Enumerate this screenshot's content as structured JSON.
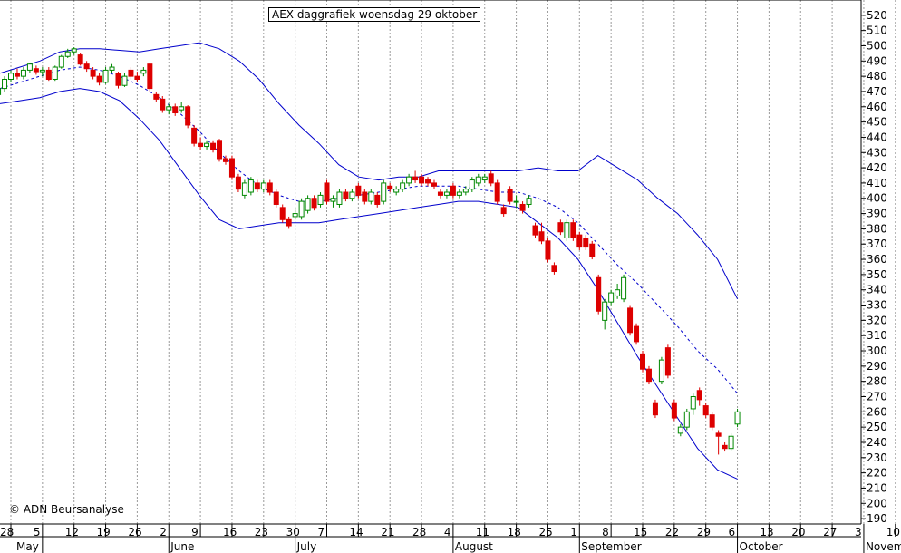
{
  "chart_data": {
    "type": "candlestick",
    "title": "AEX daggrafiek woensdag 29 oktober",
    "copyright": "© ADN Beursanalyse",
    "ylim": [
      190,
      520
    ],
    "y_ticks": [
      190,
      200,
      210,
      220,
      230,
      240,
      250,
      260,
      270,
      280,
      290,
      300,
      310,
      320,
      330,
      340,
      350,
      360,
      370,
      380,
      390,
      400,
      410,
      420,
      430,
      440,
      450,
      460,
      470,
      480,
      490,
      500,
      510,
      520
    ],
    "grid": "vertical dotted, weekly",
    "x_day_labels": [
      "28",
      "5",
      "12",
      "19",
      "26",
      "2",
      "9",
      "16",
      "23",
      "30",
      "7",
      "14",
      "21",
      "28",
      "4",
      "11",
      "18",
      "25",
      "1",
      "8",
      "15",
      "22",
      "29",
      "6",
      "13",
      "20",
      "27",
      "3",
      "10"
    ],
    "x_month_labels": [
      {
        "label": "May",
        "week_index": 1
      },
      {
        "label": "June",
        "week_index": 5
      },
      {
        "label": "July",
        "week_index": 9
      },
      {
        "label": "August",
        "week_index": 14
      },
      {
        "label": "September",
        "week_index": 18
      },
      {
        "label": "October",
        "week_index": 23
      },
      {
        "label": "Novemb",
        "week_index": 27
      }
    ],
    "candles_per_week": 5,
    "candles": [
      {
        "o": 468,
        "c": 472,
        "h": 474,
        "l": 466
      },
      {
        "o": 472,
        "c": 478,
        "h": 480,
        "l": 470
      },
      {
        "o": 478,
        "c": 482,
        "h": 484,
        "l": 476
      },
      {
        "o": 482,
        "c": 480,
        "h": 485,
        "l": 478
      },
      {
        "o": 480,
        "c": 484,
        "h": 486,
        "l": 478
      },
      {
        "o": 484,
        "c": 488,
        "h": 489,
        "l": 482
      },
      {
        "o": 485,
        "c": 483,
        "h": 487,
        "l": 481
      },
      {
        "o": 483,
        "c": 484,
        "h": 486,
        "l": 480
      },
      {
        "o": 484,
        "c": 478,
        "h": 486,
        "l": 477
      },
      {
        "o": 478,
        "c": 486,
        "h": 487,
        "l": 477
      },
      {
        "o": 486,
        "c": 493,
        "h": 494,
        "l": 485
      },
      {
        "o": 493,
        "c": 496,
        "h": 498,
        "l": 492
      },
      {
        "o": 496,
        "c": 498,
        "h": 499,
        "l": 494
      },
      {
        "o": 494,
        "c": 488,
        "h": 495,
        "l": 487
      },
      {
        "o": 488,
        "c": 485,
        "h": 490,
        "l": 483
      },
      {
        "o": 484,
        "c": 480,
        "h": 486,
        "l": 478
      },
      {
        "o": 480,
        "c": 476,
        "h": 482,
        "l": 474
      },
      {
        "o": 476,
        "c": 484,
        "h": 486,
        "l": 475
      },
      {
        "o": 484,
        "c": 486,
        "h": 488,
        "l": 482
      },
      {
        "o": 482,
        "c": 474,
        "h": 483,
        "l": 472
      },
      {
        "o": 474,
        "c": 480,
        "h": 482,
        "l": 473
      },
      {
        "o": 484,
        "c": 480,
        "h": 486,
        "l": 478
      },
      {
        "o": 480,
        "c": 478,
        "h": 483,
        "l": 476
      },
      {
        "o": 482,
        "c": 484,
        "h": 486,
        "l": 480
      },
      {
        "o": 488,
        "c": 472,
        "h": 489,
        "l": 470
      },
      {
        "o": 468,
        "c": 465,
        "h": 470,
        "l": 463
      },
      {
        "o": 465,
        "c": 458,
        "h": 467,
        "l": 456
      },
      {
        "o": 458,
        "c": 460,
        "h": 462,
        "l": 455
      },
      {
        "o": 460,
        "c": 456,
        "h": 462,
        "l": 454
      },
      {
        "o": 458,
        "c": 460,
        "h": 463,
        "l": 456
      },
      {
        "o": 460,
        "c": 448,
        "h": 461,
        "l": 446
      },
      {
        "o": 446,
        "c": 436,
        "h": 448,
        "l": 434
      },
      {
        "o": 436,
        "c": 434,
        "h": 440,
        "l": 432
      },
      {
        "o": 434,
        "c": 436,
        "h": 438,
        "l": 432
      },
      {
        "o": 436,
        "c": 432,
        "h": 438,
        "l": 430
      },
      {
        "o": 438,
        "c": 426,
        "h": 439,
        "l": 424
      },
      {
        "o": 426,
        "c": 424,
        "h": 428,
        "l": 422
      },
      {
        "o": 426,
        "c": 414,
        "h": 428,
        "l": 412
      },
      {
        "o": 414,
        "c": 406,
        "h": 416,
        "l": 404
      },
      {
        "o": 402,
        "c": 410,
        "h": 412,
        "l": 400
      },
      {
        "o": 404,
        "c": 412,
        "h": 414,
        "l": 402
      },
      {
        "o": 410,
        "c": 406,
        "h": 412,
        "l": 404
      },
      {
        "o": 406,
        "c": 410,
        "h": 412,
        "l": 404
      },
      {
        "o": 410,
        "c": 404,
        "h": 412,
        "l": 402
      },
      {
        "o": 404,
        "c": 396,
        "h": 406,
        "l": 394
      },
      {
        "o": 394,
        "c": 386,
        "h": 396,
        "l": 384
      },
      {
        "o": 386,
        "c": 382,
        "h": 388,
        "l": 380
      },
      {
        "o": 388,
        "c": 390,
        "h": 394,
        "l": 386
      },
      {
        "o": 388,
        "c": 398,
        "h": 400,
        "l": 386
      },
      {
        "o": 392,
        "c": 400,
        "h": 402,
        "l": 390
      },
      {
        "o": 400,
        "c": 394,
        "h": 402,
        "l": 392
      },
      {
        "o": 396,
        "c": 402,
        "h": 404,
        "l": 394
      },
      {
        "o": 410,
        "c": 398,
        "h": 412,
        "l": 396
      },
      {
        "o": 398,
        "c": 400,
        "h": 402,
        "l": 394
      },
      {
        "o": 396,
        "c": 404,
        "h": 406,
        "l": 394
      },
      {
        "o": 404,
        "c": 400,
        "h": 406,
        "l": 398
      },
      {
        "o": 400,
        "c": 404,
        "h": 406,
        "l": 398
      },
      {
        "o": 408,
        "c": 402,
        "h": 410,
        "l": 400
      },
      {
        "o": 404,
        "c": 398,
        "h": 406,
        "l": 396
      },
      {
        "o": 398,
        "c": 404,
        "h": 406,
        "l": 396
      },
      {
        "o": 402,
        "c": 396,
        "h": 404,
        "l": 394
      },
      {
        "o": 398,
        "c": 410,
        "h": 412,
        "l": 396
      },
      {
        "o": 408,
        "c": 406,
        "h": 410,
        "l": 404
      },
      {
        "o": 404,
        "c": 406,
        "h": 408,
        "l": 402
      },
      {
        "o": 406,
        "c": 410,
        "h": 412,
        "l": 404
      },
      {
        "o": 410,
        "c": 414,
        "h": 416,
        "l": 408
      },
      {
        "o": 414,
        "c": 412,
        "h": 418,
        "l": 410
      },
      {
        "o": 414,
        "c": 410,
        "h": 416,
        "l": 408
      },
      {
        "o": 412,
        "c": 410,
        "h": 414,
        "l": 408
      },
      {
        "o": 410,
        "c": 408,
        "h": 412,
        "l": 406
      },
      {
        "o": 404,
        "c": 402,
        "h": 406,
        "l": 400
      },
      {
        "o": 402,
        "c": 404,
        "h": 406,
        "l": 400
      },
      {
        "o": 408,
        "c": 402,
        "h": 410,
        "l": 400
      },
      {
        "o": 402,
        "c": 404,
        "h": 406,
        "l": 400
      },
      {
        "o": 404,
        "c": 406,
        "h": 408,
        "l": 402
      },
      {
        "o": 406,
        "c": 412,
        "h": 414,
        "l": 404
      },
      {
        "o": 410,
        "c": 414,
        "h": 416,
        "l": 408
      },
      {
        "o": 412,
        "c": 414,
        "h": 416,
        "l": 410
      },
      {
        "o": 416,
        "c": 410,
        "h": 418,
        "l": 408
      },
      {
        "o": 410,
        "c": 398,
        "h": 412,
        "l": 396
      },
      {
        "o": 394,
        "c": 390,
        "h": 396,
        "l": 388
      },
      {
        "o": 406,
        "c": 398,
        "h": 408,
        "l": 396
      },
      {
        "o": 398,
        "c": 398,
        "h": 402,
        "l": 394
      },
      {
        "o": 396,
        "c": 392,
        "h": 398,
        "l": 390
      },
      {
        "o": 396,
        "c": 400,
        "h": 402,
        "l": 394
      },
      {
        "o": 382,
        "c": 376,
        "h": 384,
        "l": 374
      },
      {
        "o": 378,
        "c": 372,
        "h": 384,
        "l": 370
      },
      {
        "o": 372,
        "c": 360,
        "h": 374,
        "l": 358
      },
      {
        "o": 356,
        "c": 352,
        "h": 358,
        "l": 350
      },
      {
        "o": 384,
        "c": 378,
        "h": 386,
        "l": 376
      },
      {
        "o": 374,
        "c": 384,
        "h": 386,
        "l": 372
      },
      {
        "o": 384,
        "c": 374,
        "h": 386,
        "l": 372
      },
      {
        "o": 376,
        "c": 368,
        "h": 378,
        "l": 366
      },
      {
        "o": 374,
        "c": 368,
        "h": 376,
        "l": 366
      },
      {
        "o": 370,
        "c": 362,
        "h": 372,
        "l": 360
      },
      {
        "o": 348,
        "c": 326,
        "h": 350,
        "l": 324
      },
      {
        "o": 320,
        "c": 332,
        "h": 334,
        "l": 314
      },
      {
        "o": 332,
        "c": 338,
        "h": 340,
        "l": 330
      },
      {
        "o": 336,
        "c": 340,
        "h": 344,
        "l": 334
      },
      {
        "o": 334,
        "c": 348,
        "h": 350,
        "l": 332
      },
      {
        "o": 328,
        "c": 312,
        "h": 330,
        "l": 310
      },
      {
        "o": 316,
        "c": 306,
        "h": 318,
        "l": 304
      },
      {
        "o": 298,
        "c": 288,
        "h": 300,
        "l": 286
      },
      {
        "o": 288,
        "c": 280,
        "h": 290,
        "l": 278
      },
      {
        "o": 266,
        "c": 258,
        "h": 268,
        "l": 256
      },
      {
        "o": 280,
        "c": 294,
        "h": 296,
        "l": 278
      },
      {
        "o": 302,
        "c": 284,
        "h": 304,
        "l": 282
      },
      {
        "o": 266,
        "c": 256,
        "h": 268,
        "l": 254
      },
      {
        "o": 246,
        "c": 250,
        "h": 252,
        "l": 244
      },
      {
        "o": 250,
        "c": 260,
        "h": 262,
        "l": 248
      },
      {
        "o": 262,
        "c": 270,
        "h": 272,
        "l": 258
      },
      {
        "o": 274,
        "c": 268,
        "h": 276,
        "l": 264
      },
      {
        "o": 264,
        "c": 258,
        "h": 266,
        "l": 256
      },
      {
        "o": 258,
        "c": 250,
        "h": 260,
        "l": 248
      },
      {
        "o": 246,
        "c": 244,
        "h": 248,
        "l": 232
      },
      {
        "o": 238,
        "c": 236,
        "h": 240,
        "l": 234
      },
      {
        "o": 236,
        "c": 244,
        "h": 246,
        "l": 234
      },
      {
        "o": 252,
        "c": 260,
        "h": 262,
        "l": 250
      }
    ],
    "bands": {
      "upper": [
        482,
        486,
        490,
        496,
        498,
        498,
        497,
        496,
        498,
        500,
        502,
        498,
        490,
        478,
        462,
        448,
        436,
        422,
        414,
        412,
        414,
        414,
        418,
        418,
        418,
        418,
        418,
        420,
        418,
        418,
        428,
        420,
        412,
        400,
        390,
        376,
        360,
        334
      ],
      "middle": [
        472,
        476,
        480,
        484,
        486,
        484,
        480,
        474,
        466,
        456,
        444,
        430,
        418,
        408,
        402,
        398,
        398,
        400,
        402,
        404,
        406,
        408,
        408,
        408,
        406,
        404,
        404,
        400,
        394,
        384,
        370,
        356,
        344,
        330,
        316,
        300,
        288,
        272
      ],
      "lower": [
        462,
        464,
        466,
        470,
        472,
        470,
        464,
        452,
        438,
        420,
        402,
        386,
        380,
        382,
        384,
        384,
        384,
        386,
        388,
        390,
        392,
        394,
        396,
        398,
        398,
        396,
        394,
        384,
        374,
        360,
        340,
        318,
        296,
        276,
        256,
        236,
        222,
        216
      ]
    }
  }
}
